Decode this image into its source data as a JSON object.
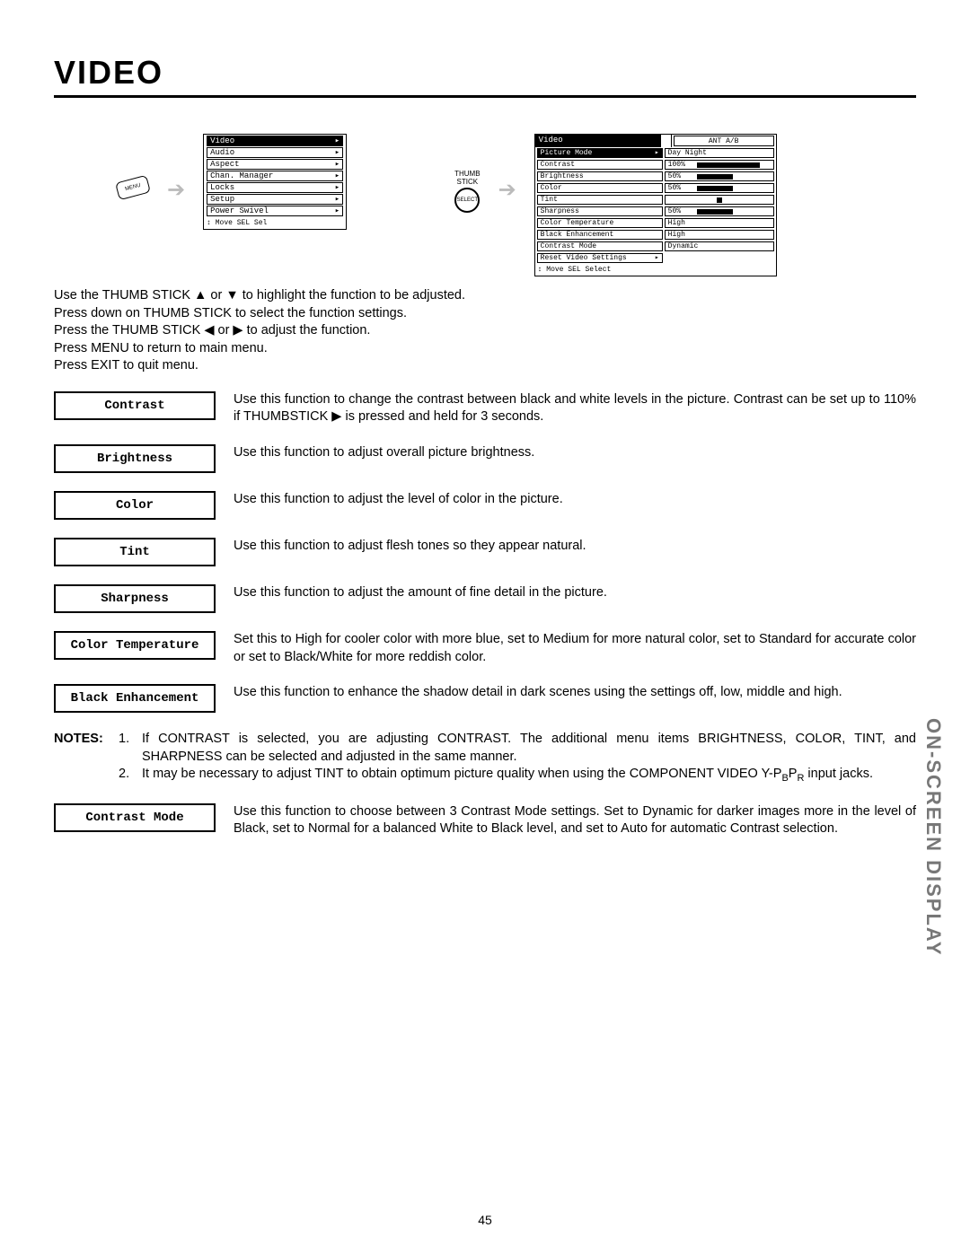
{
  "page": {
    "title": "VIDEO",
    "sideLabel": "ON-SCREEN DISPLAY",
    "pageNumber": "45"
  },
  "mainMenu": {
    "items": [
      "Video",
      "Audio",
      "Aspect",
      "Chan. Manager",
      "Locks",
      "Setup",
      "Power Swivel"
    ],
    "footer": "↕ Move  SEL Sel",
    "buttonLabel": "MENU"
  },
  "thumbStick": {
    "label1": "THUMB",
    "label2": "STICK",
    "inner": "SELECT"
  },
  "videoMenu": {
    "header": "Video",
    "headerRight": "ANT A/B",
    "rows": [
      {
        "label": "Picture Mode",
        "sel": true,
        "arrow": true,
        "val": "Day     Night",
        "bar": null
      },
      {
        "label": "Contrast",
        "val": "100%",
        "bar": 70
      },
      {
        "label": "Brightness",
        "val": "50%",
        "bar": 40
      },
      {
        "label": "Color",
        "val": "50%",
        "bar": 40
      },
      {
        "label": "Tint",
        "val": "",
        "bar": 40,
        "center": true
      },
      {
        "label": "Sharpness",
        "val": "50%",
        "bar": 40
      },
      {
        "label": "Color Temperature",
        "val": "High",
        "bar": null
      },
      {
        "label": "Black Enhancement",
        "val": "High",
        "bar": null
      },
      {
        "label": "Contrast Mode",
        "val": "Dynamic",
        "bar": null
      },
      {
        "label": "Reset Video Settings",
        "arrow": true,
        "noval": true
      }
    ],
    "footer": "↕ Move  SEL Select"
  },
  "instructions": [
    "Use the THUMB STICK ▲ or ▼ to highlight the function to be adjusted.",
    "Press down on THUMB STICK to select the function settings.",
    "Press the THUMB STICK ◀ or ▶ to adjust the function.",
    "Press MENU to return to main menu.",
    "Press EXIT to quit menu."
  ],
  "defs": [
    {
      "label": "Contrast",
      "text": "Use this function to change the contrast between black and white levels in the picture.   Contrast can be set up to 110% if THUMBSTICK ▶ is pressed and held for 3 seconds."
    },
    {
      "label": "Brightness",
      "text": "Use this function to adjust overall picture brightness."
    },
    {
      "label": "Color",
      "text": "Use this function to adjust the level of color in the picture."
    },
    {
      "label": "Tint",
      "text": "Use this function to adjust flesh tones so they appear natural."
    },
    {
      "label": "Sharpness",
      "text": "Use this function to adjust the amount of fine detail in the picture."
    },
    {
      "label": "Color Temperature",
      "text": "Set this to High for cooler color with more blue, set to Medium for more natural color, set to Standard for accurate color or set to Black/White for more reddish color."
    },
    {
      "label": "Black Enhancement",
      "text": "Use this function to enhance the shadow detail in dark scenes using the settings off, low, middle and high."
    }
  ],
  "notes": {
    "label": "NOTES:",
    "items": [
      "If CONTRAST is selected, you are adjusting CONTRAST.  The additional menu items BRIGHTNESS, COLOR, TINT, and SHARPNESS can be selected and adjusted in the same manner.",
      "It may be necessary to adjust TINT to obtain optimum picture quality when using the COMPONENT VIDEO Y-P|B|P|R| input jacks."
    ]
  },
  "defs2": [
    {
      "label": "Contrast Mode",
      "text": "Use this function to choose between 3 Contrast Mode settings.  Set to Dynamic for darker images more in the level of Black, set to Normal for a balanced White to Black level, and set to Auto for automatic Contrast selection."
    }
  ]
}
